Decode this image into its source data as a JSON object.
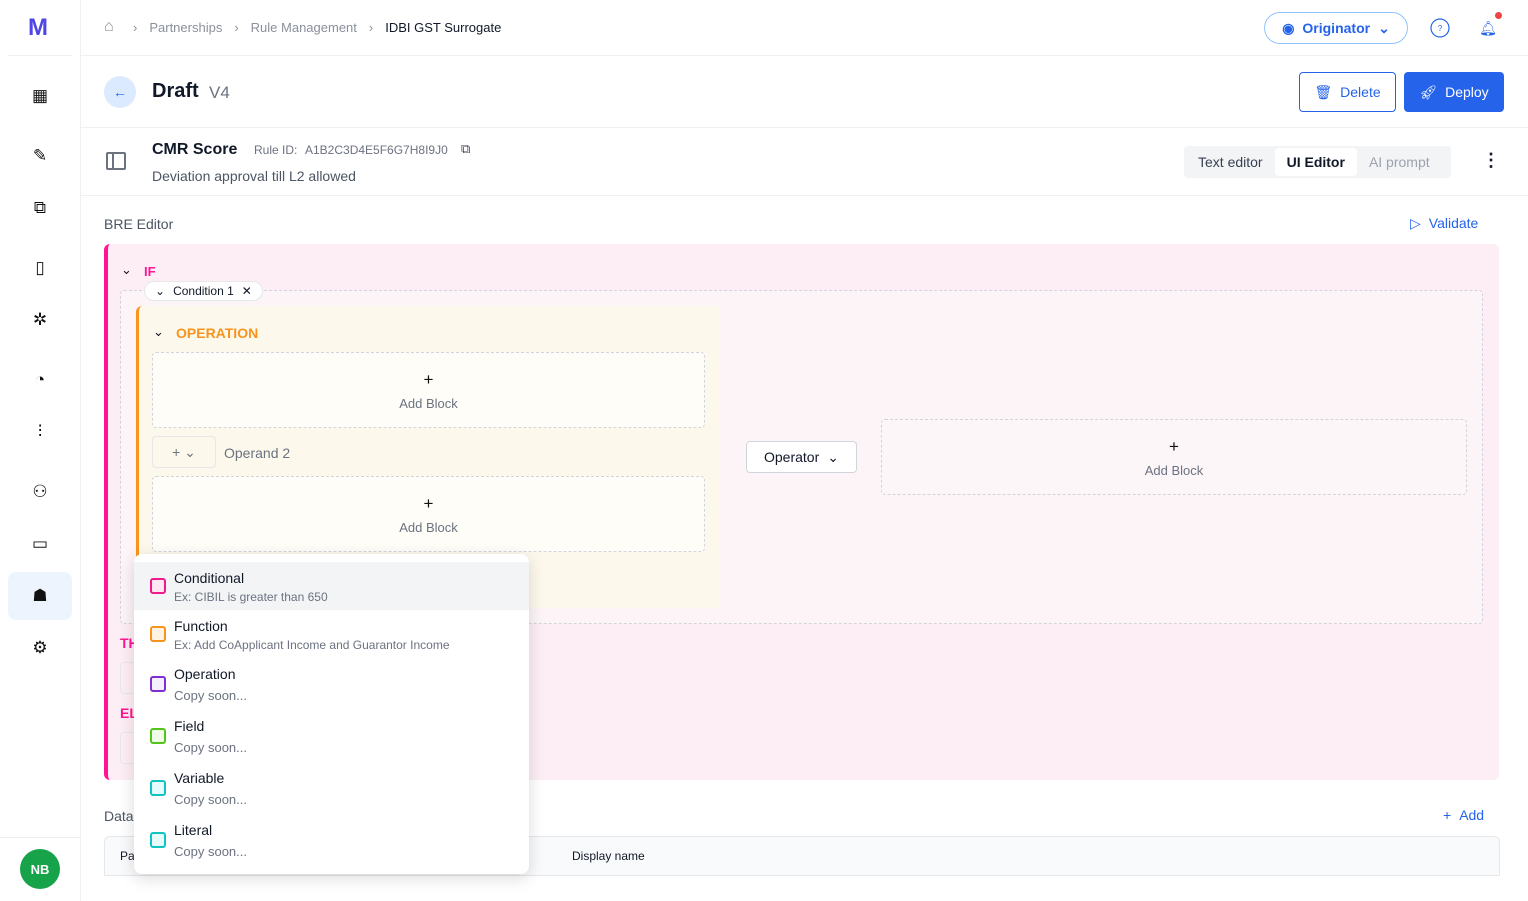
{
  "sidebar": {
    "logo": "M",
    "items": [
      "dashboard-icon",
      "edit-document-icon",
      "copy-icon",
      "book-icon",
      "sparkle-icon",
      "pie-chart-icon",
      "analytics-icon",
      "user-settings-icon",
      "folder-icon",
      "team-icon",
      "settings-icon"
    ],
    "active": "team-icon",
    "avatar": "NB",
    "avatar_color": "#16a34a"
  },
  "header": {
    "breadcrumbs": [
      "Partnerships",
      "Rule Management",
      "IDBI GST Surrogate"
    ],
    "role_label": "Originator"
  },
  "title": {
    "text": "Draft",
    "version": "V4",
    "delete_label": "Delete",
    "deploy_label": "Deploy"
  },
  "rule": {
    "name": "CMR Score",
    "id_label": "Rule ID:",
    "id": "A1B2C3D4E5F6G7H8I9J0",
    "description": "Deviation approval till L2 allowed",
    "tabs": [
      "Text editor",
      "UI Editor",
      "AI prompt"
    ],
    "active_tab": "UI Editor"
  },
  "editor": {
    "label": "BRE Editor",
    "validate_label": "Validate",
    "if_label": "IF",
    "condition_label": "Condition 1",
    "operation_label": "OPERATION",
    "add_block": "Add Block",
    "operand2": "Operand 2",
    "operator_label": "Operator",
    "then_label": "TH",
    "else_label": "EL"
  },
  "data_section": {
    "label": "Data",
    "add_label": "Add",
    "columns": [
      "Pa",
      "Display name"
    ]
  },
  "dropdown": {
    "items": [
      {
        "title": "Conditional",
        "subtitle": "Ex: CIBIL is greater than 650",
        "color": "#ec1a8c",
        "fill": "#fde7f2"
      },
      {
        "title": "Function",
        "subtitle": "Ex: Add CoApplicant Income and Guarantor Income",
        "color": "#f7941d",
        "fill": "#fef3e2"
      },
      {
        "title": "Operation",
        "subtitle": "Copy soon...",
        "color": "#7e2fd0",
        "fill": "#f5effd"
      },
      {
        "title": "Field",
        "subtitle": "Copy soon...",
        "color": "#52c41a",
        "fill": "#f0fbea"
      },
      {
        "title": "Variable",
        "subtitle": "Copy soon...",
        "color": "#13c2c2",
        "fill": "#e6fbfb"
      },
      {
        "title": "Literal",
        "subtitle": "Copy soon...",
        "color": "#13c2c2",
        "fill": "#e6fbfb"
      }
    ]
  },
  "colors": {
    "accent": "#2563eb",
    "if": "#ff1493",
    "operation": "#f7941d"
  }
}
